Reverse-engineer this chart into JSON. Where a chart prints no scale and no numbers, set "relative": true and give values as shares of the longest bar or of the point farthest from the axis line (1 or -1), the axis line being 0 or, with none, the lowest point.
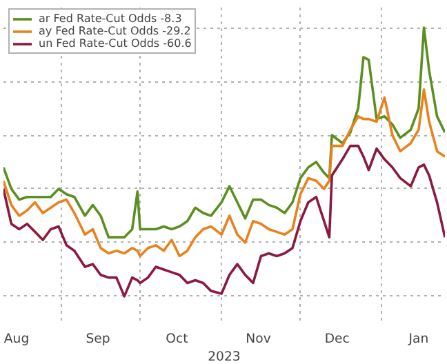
{
  "chart_data": {
    "type": "line",
    "relative": true,
    "xlabel": "2023",
    "grid": true,
    "legend": "top left",
    "marker": "none",
    "line_style": "solid",
    "x": [
      "2023-08-10",
      "2023-08-13",
      "2023-08-16",
      "2023-08-19",
      "2023-08-22",
      "2023-08-25",
      "2023-08-28",
      "2023-08-31",
      "2023-09-03",
      "2023-09-06",
      "2023-09-10",
      "2023-09-13",
      "2023-09-16",
      "2023-09-19",
      "2023-09-22",
      "2023-09-25",
      "2023-09-28",
      "2023-09-30",
      "2023-10-01",
      "2023-10-04",
      "2023-10-07",
      "2023-10-10",
      "2023-10-13",
      "2023-10-16",
      "2023-10-19",
      "2023-10-22",
      "2023-10-25",
      "2023-10-28",
      "2023-11-01",
      "2023-11-04",
      "2023-11-07",
      "2023-11-10",
      "2023-11-13",
      "2023-11-16",
      "2023-11-19",
      "2023-11-22",
      "2023-11-25",
      "2023-11-28",
      "2023-12-01",
      "2023-12-04",
      "2023-12-07",
      "2023-12-10",
      "2023-12-12",
      "2023-12-13",
      "2023-12-17",
      "2023-12-20",
      "2023-12-23",
      "2023-12-25",
      "2023-12-27",
      "2023-12-30",
      "2024-01-02",
      "2024-01-05",
      "2024-01-08",
      "2024-01-12",
      "2024-01-15",
      "2024-01-17",
      "2024-01-19",
      "2024-01-22",
      "2024-01-25"
    ],
    "xlim": [
      "2023-08-10",
      "2024-01-25"
    ],
    "xticks": [
      {
        "value": "2023-08-15",
        "label": "Aug"
      },
      {
        "value": "2023-09-01",
        "label": null
      },
      {
        "value": "2023-09-15",
        "label": "Sep"
      },
      {
        "value": "2023-10-01",
        "label": null
      },
      {
        "value": "2023-10-15",
        "label": "Oct"
      },
      {
        "value": "2023-11-01",
        "label": null
      },
      {
        "value": "2023-11-15",
        "label": "Nov"
      },
      {
        "value": "2023-12-01",
        "label": null
      },
      {
        "value": "2023-12-15",
        "label": "Dec"
      },
      {
        "value": "2024-01-01",
        "label": null
      },
      {
        "value": "2024-01-15",
        "label": "Jan"
      }
    ],
    "series": [
      {
        "name": "ar Fed Rate-Cut Odds -8.3",
        "color": "#5b8f1f",
        "values": [
          0.48,
          0.4,
          0.36,
          0.37,
          0.37,
          0.37,
          0.37,
          0.4,
          0.38,
          0.37,
          0.3,
          0.34,
          0.3,
          0.22,
          0.22,
          0.22,
          0.25,
          0.39,
          0.25,
          0.25,
          0.25,
          0.26,
          0.25,
          0.26,
          0.28,
          0.33,
          0.31,
          0.3,
          0.35,
          0.41,
          0.35,
          0.29,
          0.36,
          0.36,
          0.34,
          0.33,
          0.31,
          0.35,
          0.44,
          0.48,
          0.5,
          0.46,
          0.44,
          0.6,
          0.57,
          0.61,
          0.7,
          0.89,
          0.88,
          0.66,
          0.67,
          0.64,
          0.59,
          0.62,
          0.7,
          1.0,
          0.84,
          0.67,
          0.61
        ]
      },
      {
        "name": "ay Fed Rate-Cut Odds -29.2",
        "color": "#e8821e",
        "values": [
          0.43,
          0.34,
          0.3,
          0.32,
          0.35,
          0.31,
          0.33,
          0.35,
          0.36,
          0.31,
          0.23,
          0.25,
          0.18,
          0.16,
          0.17,
          0.16,
          0.18,
          0.17,
          0.15,
          0.18,
          0.19,
          0.17,
          0.21,
          0.15,
          0.17,
          0.22,
          0.25,
          0.26,
          0.23,
          0.3,
          0.23,
          0.2,
          0.28,
          0.27,
          0.25,
          0.24,
          0.23,
          0.25,
          0.38,
          0.44,
          0.43,
          0.4,
          0.43,
          0.56,
          0.56,
          0.62,
          0.67,
          0.66,
          0.66,
          0.65,
          0.74,
          0.6,
          0.54,
          0.57,
          0.62,
          0.77,
          0.65,
          0.54,
          0.52
        ]
      },
      {
        "name": "un Fed Rate-Cut Odds -60.6",
        "color": "#8b1a3c",
        "values": [
          0.4,
          0.27,
          0.25,
          0.27,
          0.24,
          0.21,
          0.25,
          0.26,
          0.19,
          0.17,
          0.11,
          0.12,
          0.08,
          0.07,
          0.07,
          0.0,
          0.07,
          0.06,
          0.05,
          0.07,
          0.11,
          0.1,
          0.09,
          0.08,
          0.05,
          0.06,
          0.05,
          0.02,
          0.01,
          0.08,
          0.12,
          0.08,
          0.05,
          0.15,
          0.16,
          0.15,
          0.16,
          0.18,
          0.28,
          0.35,
          0.37,
          0.28,
          0.22,
          0.45,
          0.51,
          0.56,
          0.56,
          0.52,
          0.47,
          0.55,
          0.51,
          0.48,
          0.44,
          0.41,
          0.48,
          0.49,
          0.45,
          0.35,
          0.22
        ]
      }
    ]
  }
}
